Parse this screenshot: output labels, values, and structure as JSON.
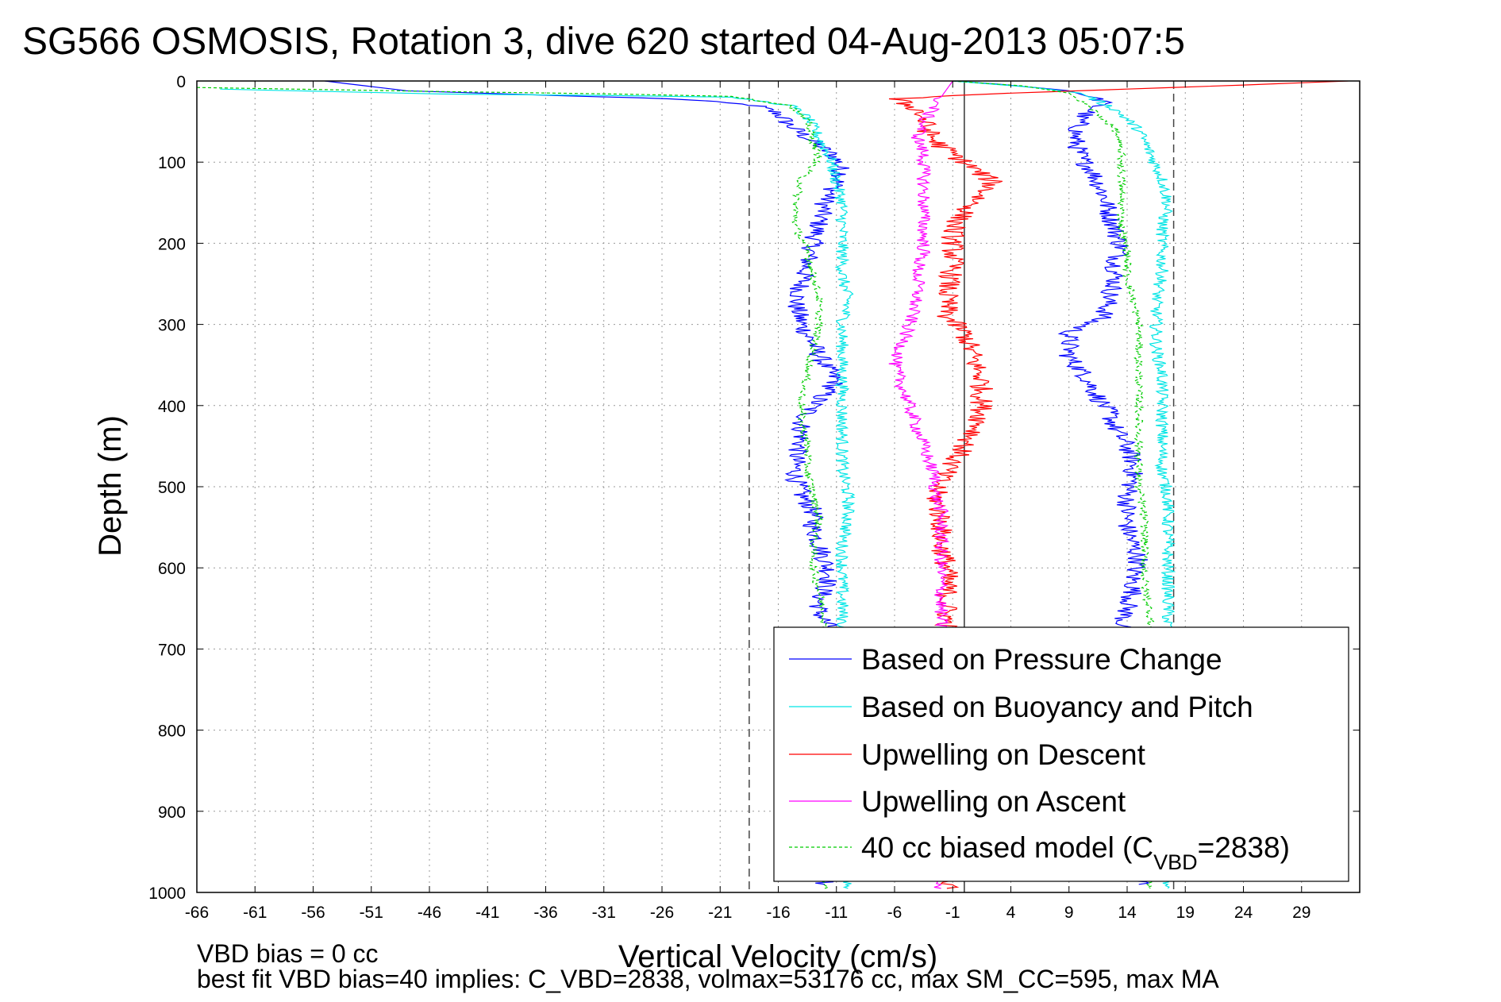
{
  "chart_data": {
    "type": "line",
    "title": "SG566 OSMOSIS, Rotation 3, dive 620 started 04-Aug-2013 05:07:5",
    "xlabel": "Vertical Velocity (cm/s)",
    "ylabel": "Depth (m)",
    "xlim": [
      -66,
      34
    ],
    "ylim": [
      0,
      1000
    ],
    "y_reversed": true,
    "grid": true,
    "x_ticks": [
      -66,
      -61,
      -56,
      -51,
      -46,
      -41,
      -36,
      -31,
      -26,
      -21,
      -16,
      -11,
      -6,
      -1,
      4,
      9,
      14,
      19,
      24,
      29
    ],
    "y_ticks": [
      0,
      100,
      200,
      300,
      400,
      500,
      600,
      700,
      800,
      900,
      1000
    ],
    "x_tick_labels": [
      "-66",
      "-61",
      "-56",
      "-51",
      "-46",
      "-41",
      "-36",
      "-31",
      "-26",
      "-21",
      "-16",
      "-11",
      "-6",
      "-1",
      "4",
      "9",
      "14",
      "19",
      "24",
      "29"
    ],
    "y_tick_labels": [
      "0",
      "100",
      "200",
      "300",
      "400",
      "500",
      "600",
      "700",
      "800",
      "900",
      "1000"
    ],
    "reference_lines": {
      "dashed_x": [
        -18.5,
        18
      ],
      "solid_x": [
        0
      ]
    },
    "legend_position": "lower-right",
    "series": [
      {
        "name": "Based on Pressure Change",
        "color": "#0000ff",
        "segments": [
          {
            "x": [
              -55,
              -48,
              -35,
              -25,
              -18,
              -16,
              -15,
              -13,
              -11,
              -10.5,
              -12,
              -12.5,
              -13,
              -13.5,
              -14,
              -14.5,
              -14,
              -13,
              -12,
              -11,
              -12,
              -13,
              -14,
              -14,
              -14.5,
              -14.5,
              -14,
              -13,
              -13,
              -12.5,
              -12,
              -11.5,
              -12,
              -12.5,
              -12.5,
              -11.5,
              -12,
              -12,
              -13,
              -12,
              -12.5,
              -12
            ],
            "y": [
              0,
              12,
              18,
              22,
              30,
              40,
              55,
              75,
              95,
              115,
              150,
              175,
              200,
              225,
              250,
              275,
              300,
              325,
              350,
              370,
              385,
              400,
              420,
              440,
              465,
              490,
              510,
              530,
              550,
              570,
              590,
              610,
              625,
              640,
              655,
              675,
              700,
              750,
              800,
              850,
              900,
              990
            ]
          },
          {
            "x": [
              -1,
              3,
              9,
              12,
              10,
              9.5,
              10,
              11,
              12,
              12.5,
              13,
              13.5,
              13,
              13,
              12.5,
              12,
              9,
              9,
              10.5,
              11.5,
              12.5,
              13,
              14,
              14.5,
              14.5,
              14,
              14,
              14,
              14.5,
              15,
              14.5,
              14.5,
              14,
              13.5,
              14,
              14,
              15,
              15
            ],
            "y": [
              0,
              4,
              12,
              25,
              45,
              70,
              95,
              110,
              140,
              165,
              185,
              205,
              225,
              245,
              265,
              290,
              310,
              340,
              365,
              390,
              410,
              430,
              450,
              470,
              490,
              510,
              530,
              550,
              570,
              590,
              610,
              630,
              650,
              670,
              700,
              800,
              900,
              990
            ]
          }
        ]
      },
      {
        "name": "Based on Buoyancy and Pitch",
        "color": "#00e5e5",
        "segments": [
          {
            "x": [
              -64,
              -45,
              -30,
              -20,
              -15,
              -13.5,
              -12.5,
              -11.5,
              -11,
              -10.5,
              -10.5,
              -10.5,
              -10.5,
              -10,
              -10.5,
              -10.5,
              -10.5,
              -10.5,
              -10.5,
              -10.5,
              -10.5,
              -10,
              -10,
              -10.5,
              -10.5,
              -10.5,
              -10.5,
              -10.5,
              -10,
              -10,
              -10,
              -10
            ],
            "y": [
              10,
              16,
              18,
              20,
              30,
              45,
              70,
              95,
              125,
              150,
              180,
              210,
              240,
              270,
              300,
              330,
              360,
              390,
              420,
              450,
              480,
              510,
              540,
              570,
              600,
              630,
              660,
              690,
              750,
              850,
              950,
              995
            ]
          },
          {
            "x": [
              -1,
              6,
              10,
              13,
              15,
              16,
              17,
              17.5,
              17,
              17,
              17,
              16.5,
              16.5,
              16.5,
              17,
              17,
              17,
              17,
              17,
              17.5,
              17.5,
              17.5,
              17.5,
              17.5,
              17.5,
              17.5,
              17.5,
              17.5,
              17.5,
              17.5,
              17.5
            ],
            "y": [
              0,
              8,
              15,
              35,
              60,
              90,
              120,
              150,
              180,
              210,
              240,
              270,
              300,
              330,
              360,
              390,
              420,
              450,
              480,
              510,
              540,
              570,
              600,
              630,
              660,
              690,
              750,
              850,
              950,
              990,
              995
            ]
          }
        ]
      },
      {
        "name": "Upwelling on Descent",
        "color": "#ff0000",
        "segments": [
          {
            "x": [
              33,
              24,
              14,
              4,
              -1,
              -6,
              -4,
              -3.5,
              -3,
              -2.5,
              -1.5,
              0,
              1.5,
              2.5,
              1.5,
              0.5,
              -0.5,
              -1,
              -1,
              -1,
              -1.5,
              -1.5,
              0,
              0.5,
              1,
              1.5,
              1.5,
              1.5,
              1,
              0,
              -1,
              -2,
              -2.5,
              -2,
              -2,
              -1.5,
              -1.5,
              -1.5,
              -1.5,
              -1.5,
              -1.5,
              -1.5
            ],
            "y": [
              0,
              5,
              10,
              15,
              18,
              22,
              35,
              50,
              65,
              75,
              85,
              100,
              115,
              125,
              140,
              155,
              170,
              185,
              200,
              230,
              260,
              290,
              310,
              330,
              350,
              370,
              390,
              410,
              430,
              450,
              470,
              490,
              510,
              540,
              570,
              600,
              630,
              660,
              700,
              800,
              900,
              995
            ]
          }
        ]
      },
      {
        "name": "Upwelling on Ascent",
        "color": "#ff00ff",
        "segments": [
          {
            "x": [
              -1,
              -1.5,
              -2.5,
              -3.5,
              -4,
              -3.5,
              -3.5,
              -3.5,
              -3.5,
              -3.5,
              -3.5,
              -3.5,
              -4,
              -4,
              -4.5,
              -5,
              -5.5,
              -6,
              -5.5,
              -5,
              -4.5,
              -4,
              -3.5,
              -3,
              -2.5,
              -2.5,
              -2,
              -2,
              -2,
              -2,
              -2,
              -2,
              -2
            ],
            "y": [
              0,
              10,
              30,
              50,
              70,
              90,
              110,
              130,
              150,
              170,
              190,
              210,
              230,
              260,
              290,
              310,
              330,
              350,
              370,
              390,
              410,
              430,
              450,
              470,
              490,
              510,
              530,
              560,
              590,
              620,
              660,
              700,
              995
            ]
          }
        ]
      },
      {
        "name": "40 cc biased model (C",
        "subscript": "VBD",
        "suffix": "=2838)",
        "color": "#00cc00",
        "dashed": true,
        "segments": [
          {
            "x": [
              -66,
              -45,
              -30,
              -20,
              -15,
              -13.5,
              -13,
              -12.5,
              -14,
              -14.5,
              -14.5,
              -13.5,
              -13,
              -12.5,
              -12.5,
              -13,
              -13.5,
              -14,
              -14,
              -13.5,
              -13.5,
              -13,
              -12.5,
              -13,
              -13,
              -12.5,
              -12,
              -12.5,
              -12.5,
              -12,
              -12
            ],
            "y": [
              8,
              13,
              16,
              19,
              30,
              50,
              75,
              95,
              120,
              150,
              180,
              210,
              240,
              270,
              300,
              330,
              360,
              390,
              420,
              450,
              480,
              510,
              540,
              570,
              600,
              630,
              660,
              700,
              800,
              900,
              995
            ]
          },
          {
            "x": [
              -1,
              5,
              9,
              11,
              13,
              13.5,
              13.5,
              13.5,
              13.5,
              14,
              14,
              14.5,
              15,
              15,
              15,
              15,
              15,
              15,
              15.5,
              15.5,
              15.5,
              16,
              16,
              16,
              16
            ],
            "y": [
              0,
              6,
              15,
              35,
              60,
              90,
              120,
              150,
              180,
              210,
              240,
              270,
              300,
              340,
              380,
              420,
              460,
              500,
              540,
              580,
              620,
              660,
              700,
              850,
              995
            ]
          }
        ]
      }
    ]
  },
  "footer": {
    "line1": "VBD bias = 0 cc",
    "line2": "best fit VBD bias=40 implies: C_VBD=2838, volmax=53176 cc, max SM_CC=595, max MA"
  }
}
